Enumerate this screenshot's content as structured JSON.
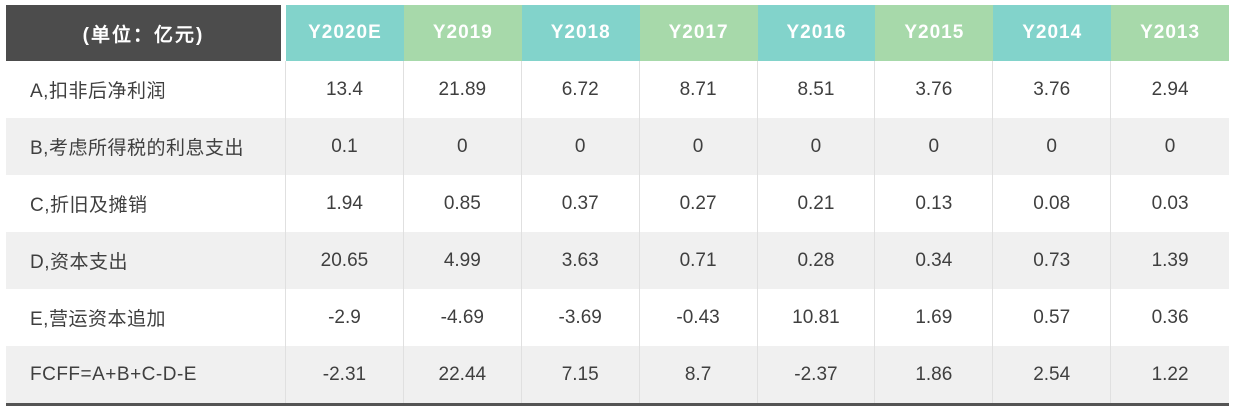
{
  "colors": {
    "header_dark": "#4c4c4c",
    "header_teal": "#82d3cb",
    "header_green": "#a7d9aa",
    "row_alt_background": "#f0f0f0",
    "text": "#3f3f3f",
    "separator": "#e0e0e0",
    "bottom_border": "#545454"
  },
  "chart_data": {
    "type": "table",
    "title": "(单位：亿元)",
    "categories": [
      "Y2020E",
      "Y2019",
      "Y2018",
      "Y2017",
      "Y2016",
      "Y2015",
      "Y2014",
      "Y2013"
    ],
    "series": [
      {
        "name": "A,扣非后净利润",
        "values": [
          13.4,
          21.89,
          6.72,
          8.71,
          8.51,
          3.76,
          3.76,
          2.94
        ]
      },
      {
        "name": "B,考虑所得税的利息支出",
        "values": [
          0.1,
          0,
          0,
          0,
          0,
          0,
          0,
          0
        ]
      },
      {
        "name": "C,折旧及摊销",
        "values": [
          1.94,
          0.85,
          0.37,
          0.27,
          0.21,
          0.13,
          0.08,
          0.03
        ]
      },
      {
        "name": "D,资本支出",
        "values": [
          20.65,
          4.99,
          3.63,
          0.71,
          0.28,
          0.34,
          0.73,
          1.39
        ]
      },
      {
        "name": "E,营运资本追加",
        "values": [
          -2.9,
          -4.69,
          -3.69,
          -0.43,
          10.81,
          1.69,
          0.57,
          0.36
        ]
      },
      {
        "name": "FCFF=A+B+C-D-E",
        "values": [
          -2.31,
          22.44,
          7.15,
          8.7,
          -2.37,
          1.86,
          2.54,
          1.22
        ]
      }
    ],
    "layout_hints": {
      "header_color_pattern": "alternating teal/green starting at first year column",
      "row_striping": "white / light-gray alternating, first data row white",
      "unit_cell_background": "dark gray",
      "grid": "vertical light separators between value columns only"
    }
  }
}
